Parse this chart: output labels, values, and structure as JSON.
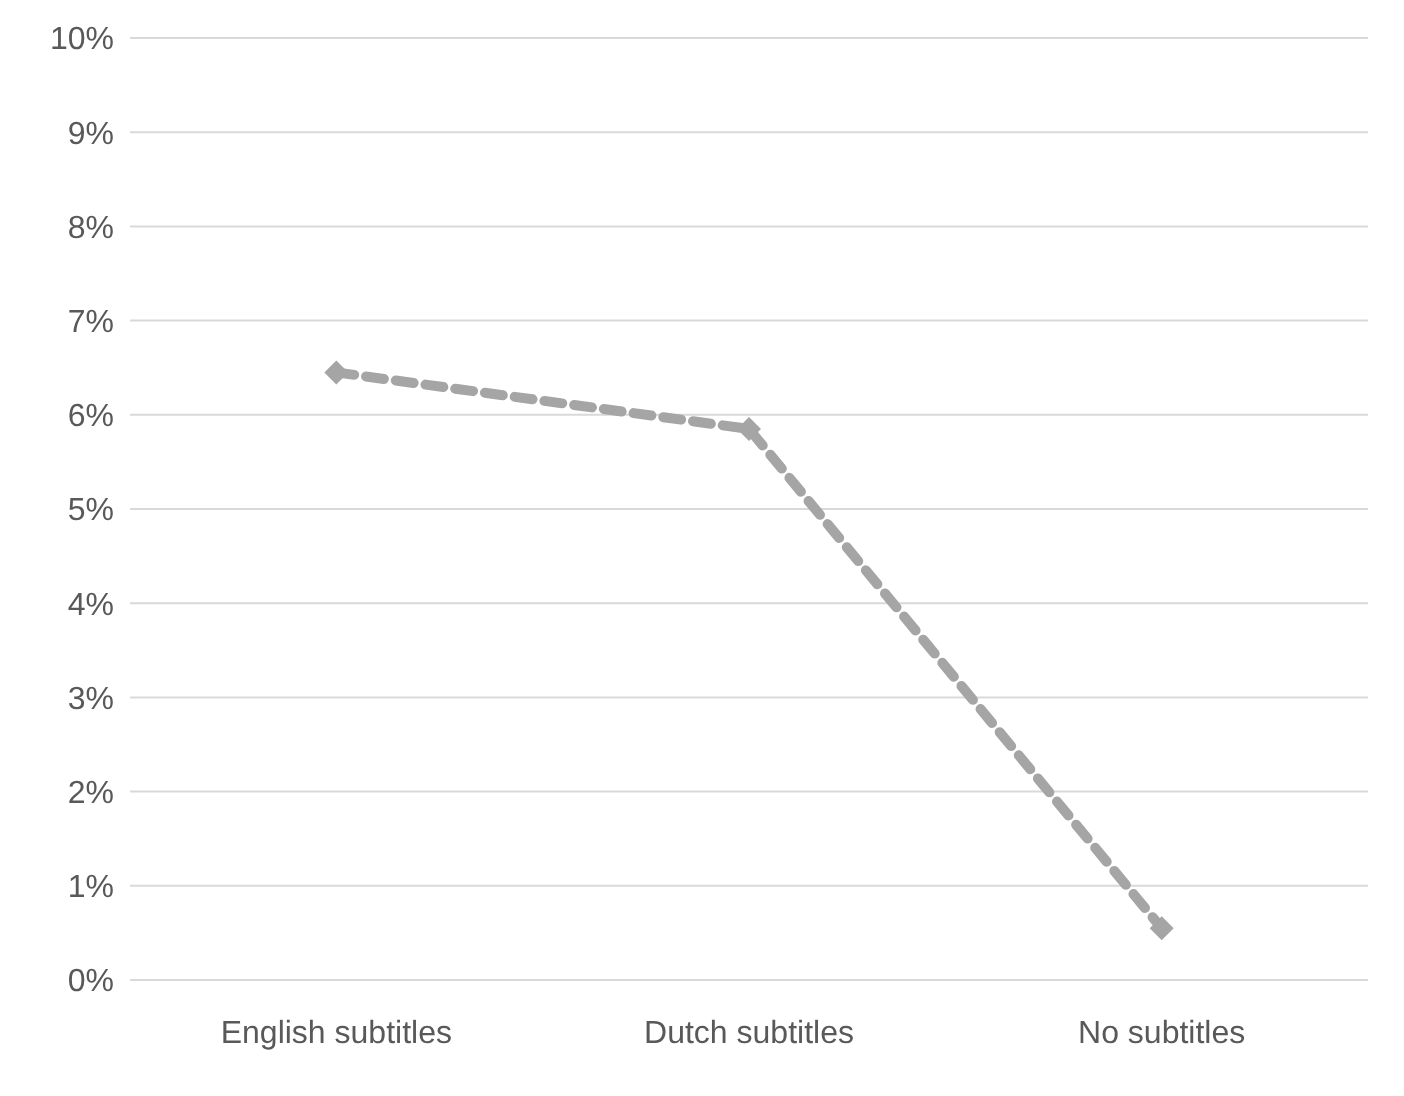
{
  "chart_data": {
    "type": "line",
    "categories": [
      "English subtitles",
      "Dutch subtitles",
      "No subtitles"
    ],
    "series": [
      {
        "color": "#a5a5a5",
        "values": [
          6.45,
          5.85,
          0.55
        ]
      }
    ],
    "ylim": [
      0,
      10
    ],
    "yticks": [
      {
        "value": 0,
        "label": "0%"
      },
      {
        "value": 1,
        "label": "1%"
      },
      {
        "value": 2,
        "label": "2%"
      },
      {
        "value": 3,
        "label": "3%"
      },
      {
        "value": 4,
        "label": "4%"
      },
      {
        "value": 5,
        "label": "5%"
      },
      {
        "value": 6,
        "label": "6%"
      },
      {
        "value": 7,
        "label": "7%"
      },
      {
        "value": 8,
        "label": "8%"
      },
      {
        "value": 9,
        "label": "9%"
      },
      {
        "value": 10,
        "label": "10%"
      }
    ],
    "grid": "y",
    "marker": "diamond",
    "line_style": "dashed"
  }
}
